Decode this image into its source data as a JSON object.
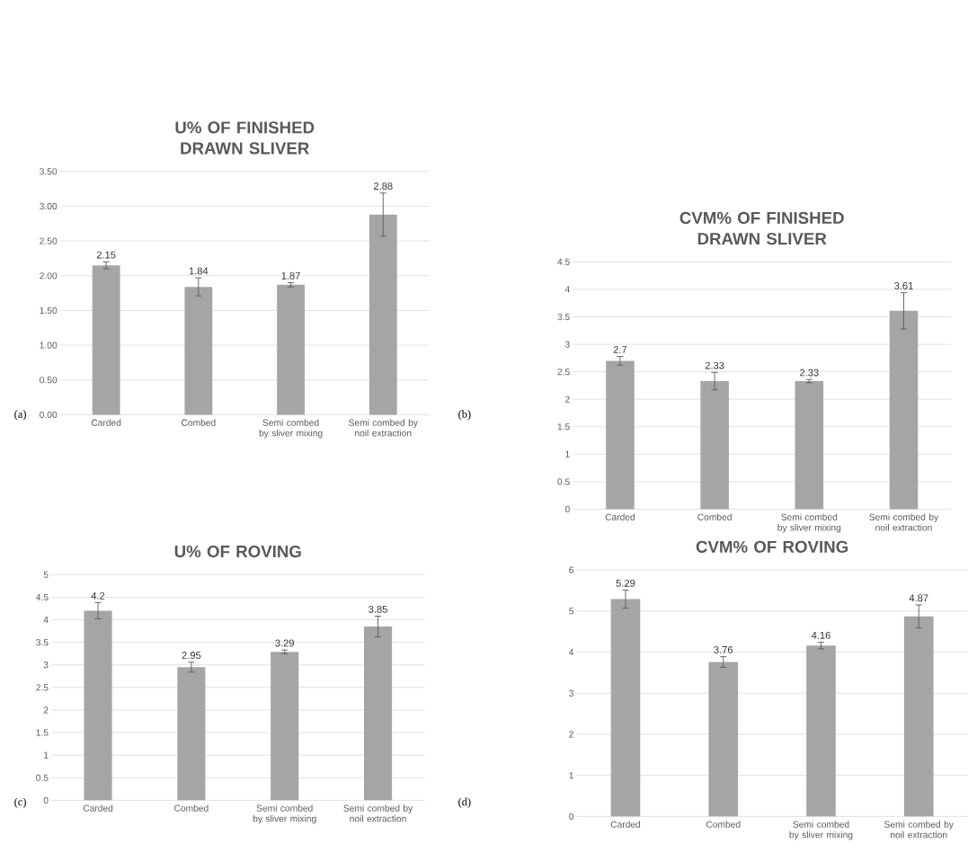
{
  "chart_data": [
    {
      "type": "bar",
      "title": "U% OF FINISHED DRAWN SLIVER",
      "categories": [
        "Carded",
        "Combed",
        "Semi combed by sliver mixing",
        "Semi combed by noil extraction"
      ],
      "values": [
        2.15,
        1.84,
        1.87,
        2.88
      ],
      "errors": [
        0.05,
        0.13,
        0.03,
        0.31
      ],
      "color": "#a5a5a5",
      "data_labels": true,
      "grid": "y",
      "ylim": [
        0,
        3.5
      ],
      "yticks": [
        {
          "value": 0,
          "label": "0.00"
        },
        {
          "value": 0.5,
          "label": "0.50"
        },
        {
          "value": 1,
          "label": "1.00"
        },
        {
          "value": 1.5,
          "label": "1.50"
        },
        {
          "value": 2,
          "label": "2.00"
        },
        {
          "value": 2.5,
          "label": "2.50"
        },
        {
          "value": 3,
          "label": "3.00"
        },
        {
          "value": 3.5,
          "label": "3.50"
        }
      ],
      "annotations": [
        "(a)"
      ]
    },
    {
      "type": "bar",
      "title": "CVM% OF FINISHED DRAWN SLIVER",
      "categories": [
        "Carded",
        "Combed",
        "Semi combed by sliver mixing",
        "Semi combed by noil extraction"
      ],
      "values": [
        2.7,
        2.33,
        2.33,
        3.61
      ],
      "errors": [
        0.08,
        0.16,
        0.03,
        0.33
      ],
      "color": "#a5a5a5",
      "data_labels": true,
      "grid": "y",
      "ylim": [
        0,
        4.5
      ],
      "yticks": [
        0,
        0.5,
        1,
        1.5,
        2,
        2.5,
        3,
        3.5,
        4,
        4.5
      ],
      "annotations": [
        "(b)"
      ]
    },
    {
      "type": "bar",
      "title": "U% OF ROVING",
      "categories": [
        "Carded",
        "Combed",
        "Semi combed by sliver mixing",
        "Semi combed by noil extraction"
      ],
      "values": [
        4.2,
        2.95,
        3.29,
        3.85
      ],
      "errors": [
        0.18,
        0.11,
        0.04,
        0.23
      ],
      "color": "#a5a5a5",
      "data_labels": true,
      "grid": "y",
      "ylim": [
        0,
        5
      ],
      "yticks": [
        0,
        0.5,
        1,
        1.5,
        2,
        2.5,
        3,
        3.5,
        4,
        4.5,
        5
      ],
      "annotations": [
        "(c)"
      ]
    },
    {
      "type": "bar",
      "title": "CVM% OF ROVING",
      "categories": [
        "Carded",
        "Combed",
        "Semi combed by sliver mixing",
        "Semi combed by noil extraction"
      ],
      "values": [
        5.29,
        3.76,
        4.16,
        4.87
      ],
      "errors": [
        0.22,
        0.13,
        0.08,
        0.28
      ],
      "color": "#a5a5a5",
      "data_labels": true,
      "grid": "y",
      "ylim": [
        0,
        6
      ],
      "yticks": [
        0,
        1,
        2,
        3,
        4,
        5,
        6
      ],
      "annotations": [
        "(d)"
      ]
    }
  ]
}
